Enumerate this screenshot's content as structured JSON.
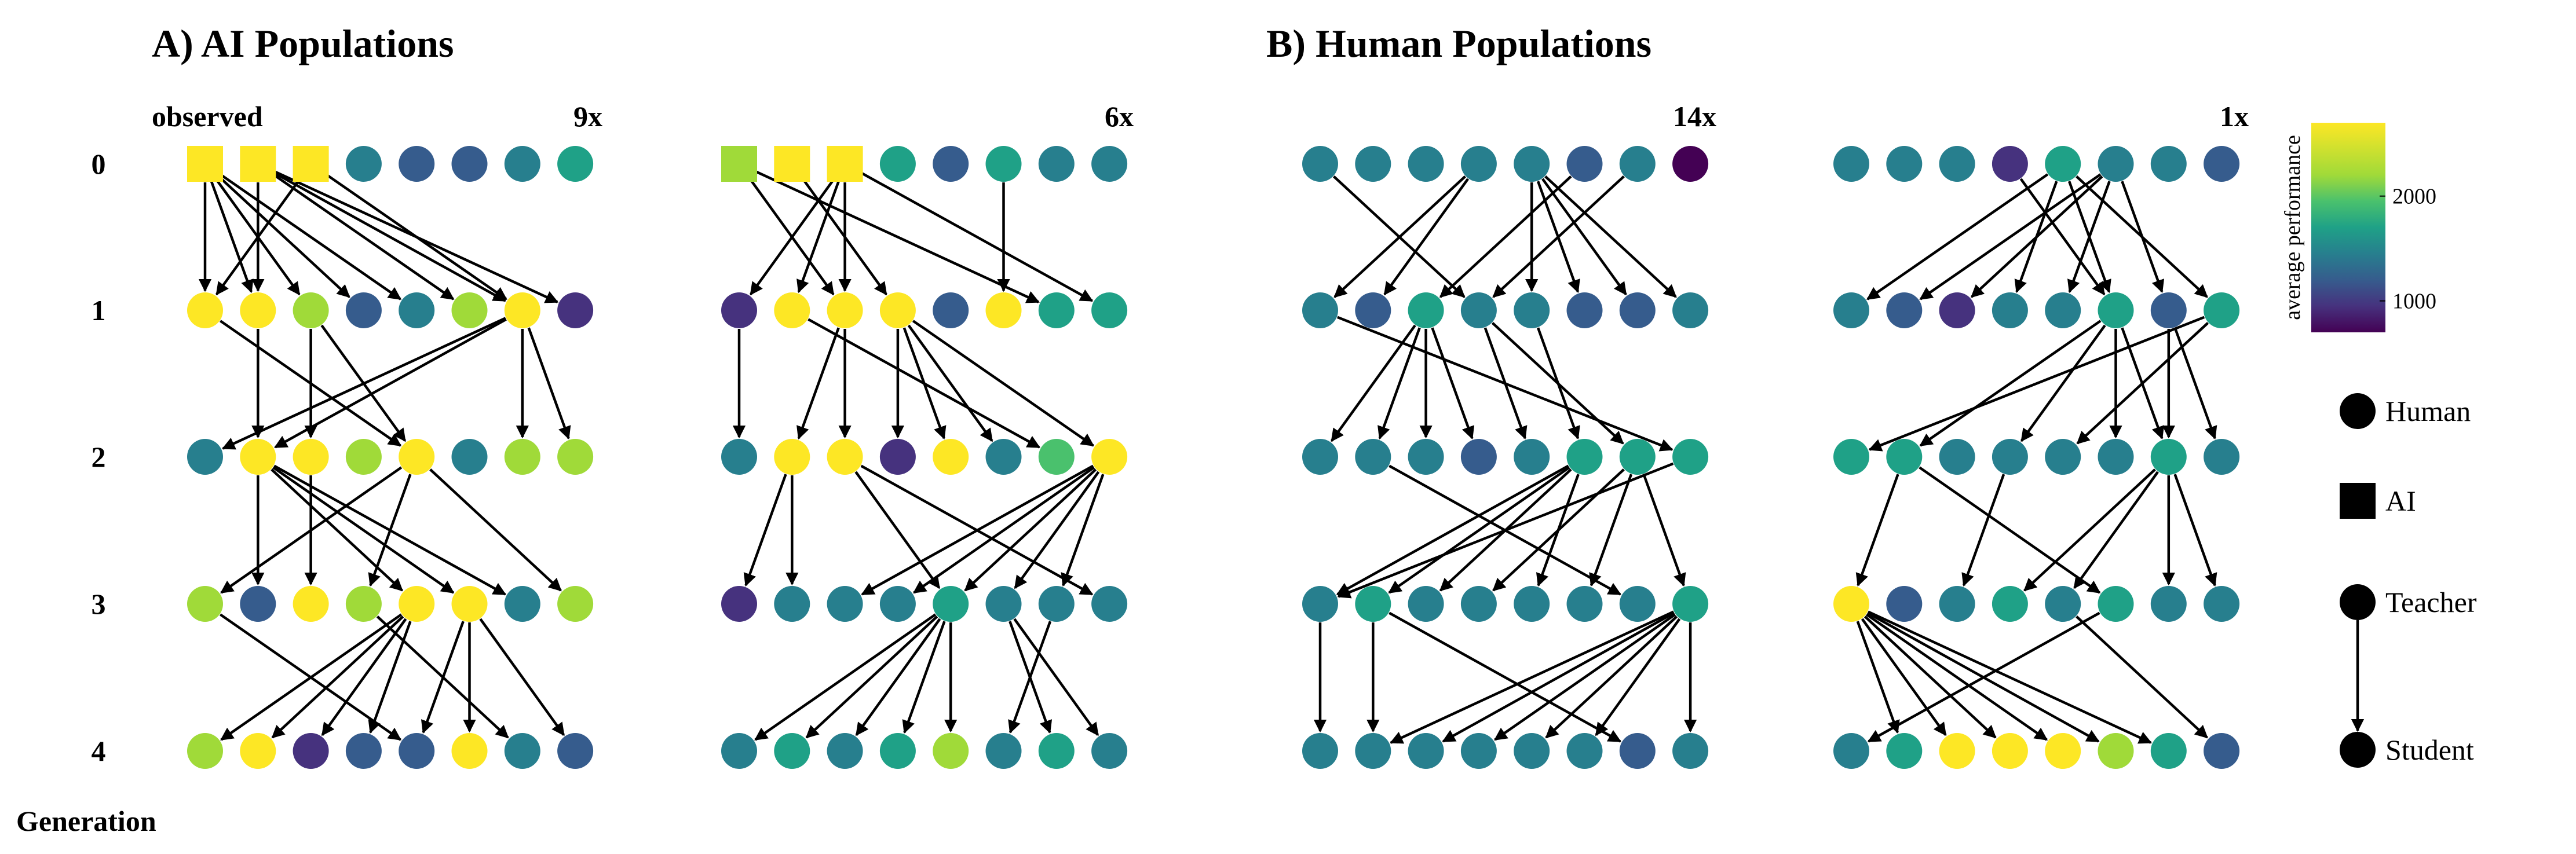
{
  "panels": [
    {
      "letter": "A)",
      "title": "AI Populations"
    },
    {
      "letter": "B)",
      "title": "Human Populations"
    }
  ],
  "axis_label": "Generation",
  "generation_labels": [
    "0",
    "1",
    "2",
    "3",
    "4"
  ],
  "colorbar": {
    "title": "average performance",
    "ticks": [
      1000,
      2000
    ],
    "range": [
      700,
      2700
    ]
  },
  "legend": {
    "human": "Human",
    "ai": "AI",
    "teacher": "Teacher",
    "student": "Student"
  },
  "colors": {
    "y": "#fde725",
    "g": "#a0da39",
    "l": "#4ac16d",
    "t": "#1fa187",
    "c": "#277f8e",
    "b": "#365c8d",
    "d": "#46327e",
    "p": "#440154"
  },
  "networks": [
    {
      "label": "observed",
      "multiplier": "9x",
      "rows": [
        [
          "y",
          "y",
          "y",
          "c",
          "b",
          "b",
          "c",
          "t"
        ],
        [
          "y",
          "y",
          "g",
          "b",
          "c",
          "g",
          "y",
          "d"
        ],
        [
          "c",
          "y",
          "y",
          "g",
          "y",
          "c",
          "g",
          "g"
        ],
        [
          "g",
          "b",
          "y",
          "g",
          "y",
          "y",
          "c",
          "g"
        ],
        [
          "g",
          "y",
          "d",
          "b",
          "b",
          "y",
          "c",
          "b"
        ]
      ],
      "ai_nodes": [
        0,
        1,
        2
      ],
      "edges": [
        [
          0,
          0,
          0
        ],
        [
          0,
          0,
          1
        ],
        [
          0,
          0,
          2
        ],
        [
          0,
          0,
          3
        ],
        [
          0,
          0,
          4
        ],
        [
          0,
          1,
          1
        ],
        [
          0,
          1,
          5
        ],
        [
          0,
          1,
          6
        ],
        [
          0,
          1,
          7
        ],
        [
          0,
          2,
          0
        ],
        [
          0,
          2,
          6
        ],
        [
          1,
          0,
          4
        ],
        [
          1,
          1,
          1
        ],
        [
          1,
          2,
          2
        ],
        [
          1,
          6,
          0
        ],
        [
          1,
          6,
          1
        ],
        [
          1,
          6,
          6
        ],
        [
          1,
          6,
          7
        ],
        [
          1,
          2,
          4
        ],
        [
          2,
          1,
          1
        ],
        [
          2,
          1,
          4
        ],
        [
          2,
          1,
          5
        ],
        [
          2,
          1,
          6
        ],
        [
          2,
          2,
          2
        ],
        [
          2,
          4,
          0
        ],
        [
          2,
          4,
          3
        ],
        [
          2,
          4,
          7
        ],
        [
          3,
          0,
          4
        ],
        [
          3,
          3,
          6
        ],
        [
          3,
          4,
          0
        ],
        [
          3,
          4,
          1
        ],
        [
          3,
          4,
          2
        ],
        [
          3,
          4,
          3
        ],
        [
          3,
          5,
          4
        ],
        [
          3,
          5,
          5
        ],
        [
          3,
          5,
          7
        ]
      ]
    },
    {
      "label": "",
      "multiplier": "6x",
      "rows": [
        [
          "g",
          "y",
          "y",
          "t",
          "b",
          "t",
          "c",
          "c"
        ],
        [
          "d",
          "y",
          "y",
          "y",
          "b",
          "y",
          "t",
          "t"
        ],
        [
          "c",
          "y",
          "y",
          "d",
          "y",
          "c",
          "l",
          "y"
        ],
        [
          "d",
          "c",
          "c",
          "c",
          "t",
          "c",
          "c",
          "c"
        ],
        [
          "c",
          "t",
          "c",
          "t",
          "g",
          "c",
          "t",
          "c"
        ]
      ],
      "ai_nodes": [
        0,
        1,
        2
      ],
      "edges": [
        [
          0,
          0,
          2
        ],
        [
          0,
          0,
          6
        ],
        [
          0,
          1,
          3
        ],
        [
          0,
          2,
          0
        ],
        [
          0,
          2,
          1
        ],
        [
          0,
          2,
          2
        ],
        [
          0,
          2,
          7
        ],
        [
          0,
          5,
          5
        ],
        [
          1,
          0,
          0
        ],
        [
          1,
          2,
          1
        ],
        [
          1,
          2,
          2
        ],
        [
          1,
          3,
          3
        ],
        [
          1,
          3,
          4
        ],
        [
          1,
          3,
          5
        ],
        [
          1,
          3,
          7
        ],
        [
          1,
          1,
          6
        ],
        [
          2,
          1,
          0
        ],
        [
          2,
          1,
          1
        ],
        [
          2,
          2,
          4
        ],
        [
          2,
          2,
          7
        ],
        [
          2,
          7,
          2
        ],
        [
          2,
          7,
          3
        ],
        [
          2,
          7,
          4
        ],
        [
          2,
          7,
          5
        ],
        [
          2,
          7,
          6
        ],
        [
          3,
          4,
          0
        ],
        [
          3,
          4,
          1
        ],
        [
          3,
          4,
          2
        ],
        [
          3,
          4,
          3
        ],
        [
          3,
          4,
          4
        ],
        [
          3,
          5,
          6
        ],
        [
          3,
          5,
          7
        ],
        [
          3,
          6,
          5
        ]
      ]
    },
    {
      "label": "",
      "multiplier": "14x",
      "rows": [
        [
          "c",
          "c",
          "c",
          "c",
          "c",
          "b",
          "c",
          "p"
        ],
        [
          "c",
          "b",
          "t",
          "c",
          "c",
          "b",
          "b",
          "c"
        ],
        [
          "c",
          "c",
          "c",
          "b",
          "c",
          "t",
          "t",
          "t"
        ],
        [
          "c",
          "t",
          "c",
          "c",
          "c",
          "c",
          "c",
          "t"
        ],
        [
          "c",
          "c",
          "c",
          "c",
          "c",
          "c",
          "b",
          "c"
        ]
      ],
      "ai_nodes": [],
      "edges": [
        [
          0,
          0,
          3
        ],
        [
          0,
          3,
          0
        ],
        [
          0,
          3,
          1
        ],
        [
          0,
          4,
          4
        ],
        [
          0,
          4,
          5
        ],
        [
          0,
          4,
          6
        ],
        [
          0,
          4,
          7
        ],
        [
          0,
          6,
          3
        ],
        [
          0,
          5,
          2
        ],
        [
          1,
          0,
          7
        ],
        [
          1,
          2,
          0
        ],
        [
          1,
          2,
          1
        ],
        [
          1,
          2,
          2
        ],
        [
          1,
          2,
          3
        ],
        [
          1,
          3,
          4
        ],
        [
          1,
          4,
          5
        ],
        [
          1,
          3,
          6
        ],
        [
          2,
          1,
          6
        ],
        [
          2,
          5,
          0
        ],
        [
          2,
          5,
          1
        ],
        [
          2,
          5,
          2
        ],
        [
          2,
          5,
          4
        ],
        [
          2,
          6,
          3
        ],
        [
          2,
          6,
          5
        ],
        [
          2,
          6,
          7
        ],
        [
          2,
          7,
          0
        ],
        [
          3,
          0,
          0
        ],
        [
          3,
          1,
          1
        ],
        [
          3,
          1,
          6
        ],
        [
          3,
          7,
          1
        ],
        [
          3,
          7,
          2
        ],
        [
          3,
          7,
          3
        ],
        [
          3,
          7,
          4
        ],
        [
          3,
          7,
          5
        ],
        [
          3,
          7,
          7
        ]
      ]
    },
    {
      "label": "",
      "multiplier": "1x",
      "rows": [
        [
          "c",
          "c",
          "c",
          "d",
          "t",
          "c",
          "c",
          "b"
        ],
        [
          "c",
          "b",
          "d",
          "c",
          "c",
          "t",
          "b",
          "t"
        ],
        [
          "t",
          "t",
          "c",
          "c",
          "c",
          "c",
          "t",
          "c"
        ],
        [
          "y",
          "b",
          "c",
          "t",
          "c",
          "t",
          "c",
          "c"
        ],
        [
          "c",
          "t",
          "y",
          "y",
          "y",
          "g",
          "t",
          "b"
        ]
      ],
      "ai_nodes": [],
      "edges": [
        [
          0,
          3,
          5
        ],
        [
          0,
          4,
          0
        ],
        [
          0,
          4,
          3
        ],
        [
          0,
          4,
          5
        ],
        [
          0,
          4,
          7
        ],
        [
          0,
          5,
          1
        ],
        [
          0,
          5,
          2
        ],
        [
          0,
          5,
          4
        ],
        [
          0,
          5,
          6
        ],
        [
          1,
          5,
          1
        ],
        [
          1,
          5,
          3
        ],
        [
          1,
          5,
          5
        ],
        [
          1,
          5,
          6
        ],
        [
          1,
          7,
          0
        ],
        [
          1,
          7,
          4
        ],
        [
          1,
          6,
          6
        ],
        [
          1,
          6,
          7
        ],
        [
          2,
          1,
          0
        ],
        [
          2,
          1,
          5
        ],
        [
          2,
          3,
          2
        ],
        [
          2,
          6,
          3
        ],
        [
          2,
          6,
          4
        ],
        [
          2,
          6,
          6
        ],
        [
          2,
          6,
          7
        ],
        [
          3,
          0,
          1
        ],
        [
          3,
          0,
          2
        ],
        [
          3,
          0,
          3
        ],
        [
          3,
          0,
          4
        ],
        [
          3,
          0,
          5
        ],
        [
          3,
          0,
          6
        ],
        [
          3,
          5,
          0
        ],
        [
          3,
          4,
          7
        ]
      ]
    }
  ]
}
